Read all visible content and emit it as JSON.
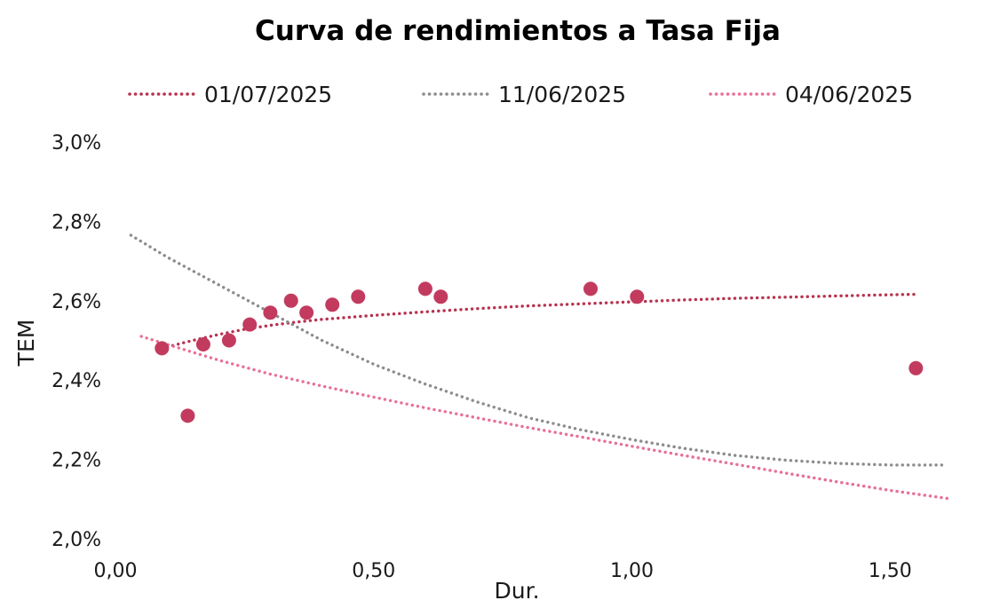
{
  "chart_data": {
    "type": "scatter",
    "title": "Curva de rendimientos a Tasa Fija",
    "xlabel": "Dur.",
    "ylabel": "TEM",
    "xlim": [
      0,
      1.62
    ],
    "ylim": [
      2.0,
      3.0
    ],
    "x_ticks": [
      {
        "value": 0.0,
        "label": "0,00"
      },
      {
        "value": 0.5,
        "label": "0,50"
      },
      {
        "value": 1.0,
        "label": "1,00"
      },
      {
        "value": 1.5,
        "label": "1,50"
      }
    ],
    "y_ticks": [
      {
        "value": 2.0,
        "label": "2,0%"
      },
      {
        "value": 2.2,
        "label": "2,2%"
      },
      {
        "value": 2.4,
        "label": "2,4%"
      },
      {
        "value": 2.6,
        "label": "2,6%"
      },
      {
        "value": 2.8,
        "label": "2,8%"
      },
      {
        "value": 3.0,
        "label": "3,0%"
      }
    ],
    "grid": false,
    "legend_position": "top",
    "points": {
      "color": "#c23b5f",
      "x": [
        0.09,
        0.14,
        0.17,
        0.22,
        0.26,
        0.3,
        0.34,
        0.37,
        0.42,
        0.47,
        0.6,
        0.63,
        0.92,
        1.01,
        1.55
      ],
      "y": [
        2.48,
        2.31,
        2.49,
        2.5,
        2.54,
        2.57,
        2.6,
        2.57,
        2.59,
        2.61,
        2.63,
        2.61,
        2.63,
        2.61,
        2.43
      ]
    },
    "series": [
      {
        "name": "01/07/2025",
        "color": "#b8324f",
        "style": "dotted",
        "x": [
          0.09,
          0.15,
          0.2,
          0.25,
          0.3,
          0.35,
          0.4,
          0.45,
          0.5,
          0.6,
          0.7,
          0.8,
          0.9,
          1.0,
          1.1,
          1.2,
          1.3,
          1.4,
          1.5,
          1.55
        ],
        "y": [
          2.48,
          2.5,
          2.515,
          2.528,
          2.538,
          2.546,
          2.553,
          2.558,
          2.563,
          2.572,
          2.58,
          2.587,
          2.592,
          2.597,
          2.602,
          2.606,
          2.609,
          2.612,
          2.615,
          2.616
        ]
      },
      {
        "name": "11/06/2025",
        "color": "#8c8c8c",
        "style": "dotted",
        "x": [
          0.03,
          0.1,
          0.2,
          0.3,
          0.4,
          0.5,
          0.6,
          0.7,
          0.8,
          0.9,
          1.0,
          1.1,
          1.2,
          1.3,
          1.4,
          1.5,
          1.6
        ],
        "y": [
          2.765,
          2.71,
          2.64,
          2.57,
          2.5,
          2.44,
          2.39,
          2.345,
          2.305,
          2.275,
          2.25,
          2.228,
          2.21,
          2.198,
          2.19,
          2.186,
          2.186
        ]
      },
      {
        "name": "04/06/2025",
        "color": "#e86f95",
        "style": "dotted",
        "x": [
          0.05,
          0.1,
          0.2,
          0.3,
          0.4,
          0.5,
          0.6,
          0.7,
          0.8,
          0.9,
          1.0,
          1.1,
          1.2,
          1.3,
          1.4,
          1.5,
          1.62
        ],
        "y": [
          2.51,
          2.49,
          2.45,
          2.415,
          2.385,
          2.357,
          2.33,
          2.305,
          2.28,
          2.257,
          2.233,
          2.21,
          2.188,
          2.165,
          2.143,
          2.122,
          2.1
        ]
      }
    ]
  }
}
